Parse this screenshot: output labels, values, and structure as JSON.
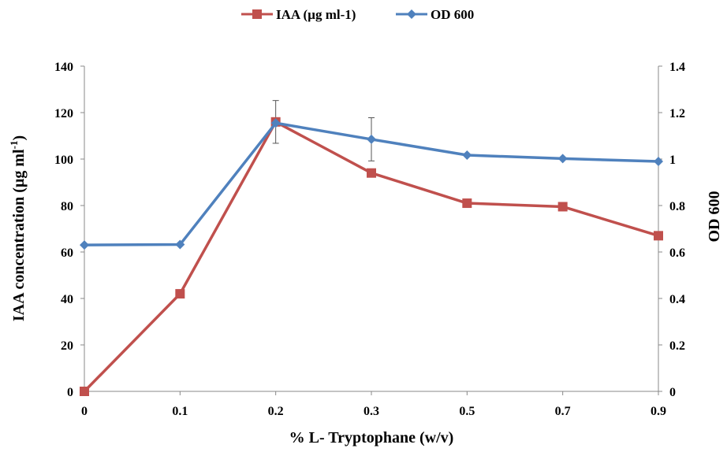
{
  "chart_data": {
    "type": "line",
    "categories": [
      "0",
      "0.1",
      "0.2",
      "0.3",
      "0.5",
      "0.7",
      "0.9"
    ],
    "xlabel": "% L- Tryptophane (w/v)",
    "ylabel_main": "IAA concentration (µg ml",
    "ylabel_sup": "-1",
    "ylabel_end": ")",
    "y2label": "OD 600",
    "ylim": [
      0,
      140
    ],
    "y2lim": [
      0,
      1.4
    ],
    "yticks": [
      "0",
      "20",
      "40",
      "60",
      "80",
      "100",
      "120",
      "140"
    ],
    "y2ticks": [
      "0",
      "0.2",
      "0.4",
      "0.6",
      "0.8",
      "1",
      "1.2",
      "1.4"
    ],
    "legend_position": "top-center",
    "grid": false,
    "series": [
      {
        "name": "IAA (µg ml-1)",
        "axis": "left",
        "color": "#C0504D",
        "marker": "square",
        "values": [
          0,
          42,
          116,
          94,
          81,
          79.5,
          67
        ],
        "error": [
          0,
          0,
          9.2,
          0,
          0,
          0,
          0
        ]
      },
      {
        "name": "OD 600",
        "axis": "right",
        "color": "#4F81BD",
        "marker": "diamond",
        "values": [
          0.63,
          0.632,
          1.155,
          1.085,
          1.017,
          1.002,
          0.99
        ],
        "error": [
          0,
          0,
          0,
          0.093,
          0,
          0,
          0
        ]
      }
    ]
  }
}
